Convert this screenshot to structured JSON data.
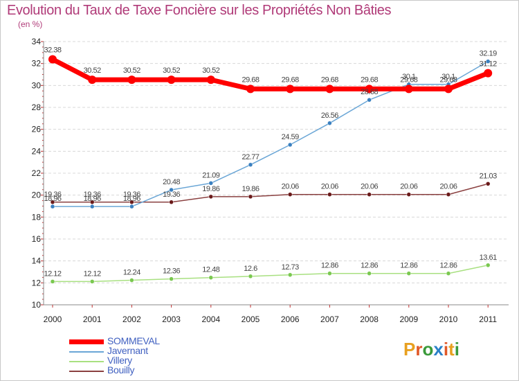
{
  "title": "Evolution du Taux de Taxe Foncière sur les Propriétés Non Bâties",
  "subtitle": "(en %)",
  "logo": {
    "letters": [
      "P",
      "r",
      "o",
      "x",
      "i",
      "t",
      "i"
    ],
    "colors": [
      "#e8a020",
      "#e05828",
      "#3a9a3a",
      "#2a80c8",
      "#e05828",
      "#e8a020",
      "#3a9a3a"
    ]
  },
  "chart_data": {
    "type": "line",
    "title": "Evolution du Taux de Taxe Foncière sur les Propriétés Non Bâties",
    "ylabel": "(en %)",
    "xlabel": "",
    "x": [
      "2000",
      "2001",
      "2002",
      "2003",
      "2004",
      "2005",
      "2006",
      "2007",
      "2008",
      "2009",
      "2010",
      "2011"
    ],
    "ylim": [
      10,
      34
    ],
    "yticks": [
      10,
      12,
      14,
      16,
      18,
      20,
      22,
      24,
      26,
      28,
      30,
      32,
      34
    ],
    "grid": "horizontal",
    "legend_position": "bottom-left",
    "series": [
      {
        "name": "SOMMEVAL",
        "color": "#ff0000",
        "width": 7,
        "marker": 6,
        "values": [
          32.38,
          30.52,
          30.52,
          30.52,
          30.52,
          29.68,
          29.68,
          29.68,
          29.68,
          29.68,
          29.68,
          31.12
        ],
        "labels": [
          "32.38",
          "30.52",
          "30.52",
          "30.52",
          "30.52",
          "29.68",
          "29.68",
          "29.68",
          "29.68",
          "29.68",
          "29.68",
          "31.12"
        ]
      },
      {
        "name": "Javernant",
        "color": "#6aa6d6",
        "marker_color": "#3a80c0",
        "width": 1.5,
        "marker": 3,
        "values": [
          18.96,
          18.96,
          18.96,
          20.48,
          21.09,
          22.77,
          24.59,
          26.56,
          28.68,
          30.1,
          30.1,
          32.19
        ],
        "labels": [
          "18.96",
          "18.96",
          "18.96",
          "20.48",
          "21.09",
          "22.77",
          "24.59",
          "26.56",
          "28.68",
          "30.1",
          "30.1",
          "32.19"
        ]
      },
      {
        "name": "Villery",
        "color": "#a8e080",
        "marker_color": "#7ac850",
        "width": 1.5,
        "marker": 3,
        "values": [
          12.12,
          12.12,
          12.24,
          12.36,
          12.48,
          12.6,
          12.73,
          12.86,
          12.86,
          12.86,
          12.86,
          13.61
        ],
        "labels": [
          "12.12",
          "12.12",
          "12.24",
          "12.36",
          "12.48",
          "12.6",
          "12.73",
          "12.86",
          "12.86",
          "12.86",
          "12.86",
          "13.61"
        ]
      },
      {
        "name": "Bouilly",
        "color": "#8a4040",
        "marker_color": "#6a1a1a",
        "width": 1.5,
        "marker": 3,
        "values": [
          19.36,
          19.36,
          19.36,
          19.36,
          19.86,
          19.86,
          20.06,
          20.06,
          20.06,
          20.06,
          20.06,
          21.03
        ],
        "labels": [
          "19.36",
          "19.36",
          "19.36",
          "19.36",
          "19.86",
          "19.86",
          "20.06",
          "20.06",
          "20.06",
          "20.06",
          "20.06",
          "21.03"
        ]
      }
    ]
  }
}
